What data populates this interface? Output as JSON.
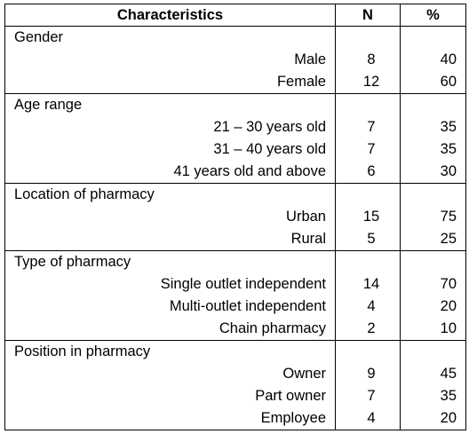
{
  "headers": {
    "characteristics": "Characteristics",
    "n": "N",
    "pct": "%"
  },
  "groups": [
    {
      "title": "Gender",
      "rows": [
        {
          "label": "Male",
          "n": "8",
          "pct": "40"
        },
        {
          "label": "Female",
          "n": "12",
          "pct": "60"
        }
      ]
    },
    {
      "title": "Age range",
      "rows": [
        {
          "label": "21 – 30 years old",
          "n": "7",
          "pct": "35"
        },
        {
          "label": "31 – 40 years old",
          "n": "7",
          "pct": "35"
        },
        {
          "label": "41 years old and above",
          "n": "6",
          "pct": "30"
        }
      ]
    },
    {
      "title": "Location of pharmacy",
      "rows": [
        {
          "label": "Urban",
          "n": "15",
          "pct": "75"
        },
        {
          "label": "Rural",
          "n": "5",
          "pct": "25"
        }
      ]
    },
    {
      "title": "Type of pharmacy",
      "rows": [
        {
          "label": "Single outlet independent",
          "n": "14",
          "pct": "70"
        },
        {
          "label": "Multi-outlet independent",
          "n": "4",
          "pct": "20"
        },
        {
          "label": "Chain pharmacy",
          "n": "2",
          "pct": "10"
        }
      ]
    },
    {
      "title": "Position in pharmacy",
      "rows": [
        {
          "label": "Owner",
          "n": "9",
          "pct": "45"
        },
        {
          "label": "Part owner",
          "n": "7",
          "pct": "35"
        },
        {
          "label": "Employee",
          "n": "4",
          "pct": "20"
        }
      ]
    }
  ]
}
